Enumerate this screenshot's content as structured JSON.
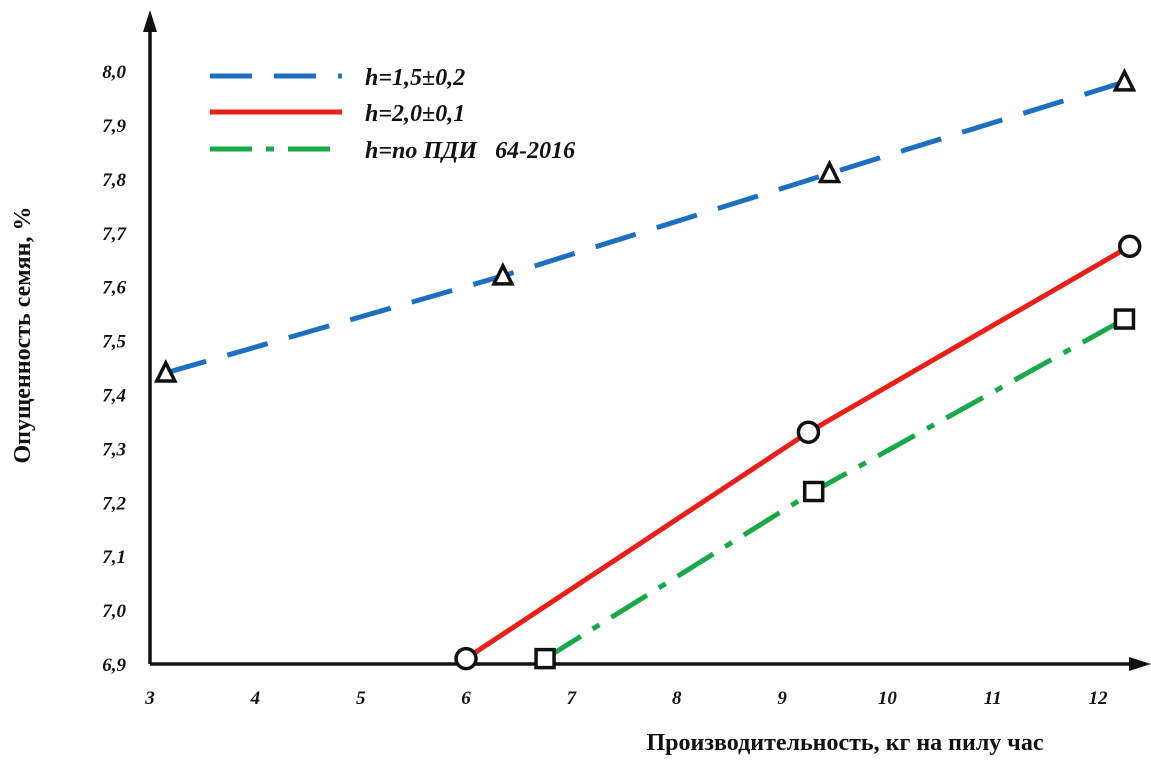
{
  "chart_data": {
    "type": "line",
    "xlabel": "Производительность, кг на пилу час",
    "ylabel": "Опущенность семян, %",
    "xlim": [
      3,
      12.35
    ],
    "ylim": [
      6.9,
      8.08
    ],
    "x_ticks": [
      {
        "value": 3,
        "label": "3"
      },
      {
        "value": 4,
        "label": "4"
      },
      {
        "value": 5,
        "label": "5"
      },
      {
        "value": 6,
        "label": "6"
      },
      {
        "value": 7,
        "label": "7"
      },
      {
        "value": 8,
        "label": "8"
      },
      {
        "value": 9,
        "label": "9"
      },
      {
        "value": 10,
        "label": "10"
      },
      {
        "value": 11,
        "label": "11"
      },
      {
        "value": 12,
        "label": "12"
      }
    ],
    "y_ticks": [
      {
        "value": 6.9,
        "label": "6,9"
      },
      {
        "value": 7.0,
        "label": "7,0"
      },
      {
        "value": 7.1,
        "label": "7,1"
      },
      {
        "value": 7.2,
        "label": "7,2"
      },
      {
        "value": 7.3,
        "label": "7,3"
      },
      {
        "value": 7.4,
        "label": "7,4"
      },
      {
        "value": 7.5,
        "label": "7,5"
      },
      {
        "value": 7.6,
        "label": "7,6"
      },
      {
        "value": 7.7,
        "label": "7,7"
      },
      {
        "value": 7.8,
        "label": "7,8"
      },
      {
        "value": 7.9,
        "label": "7,9"
      },
      {
        "value": 8.0,
        "label": "8,0"
      }
    ],
    "grid": false,
    "legend_position": "top-left",
    "series": [
      {
        "name": "h=1,5±0,2",
        "color": "#1f6fc0",
        "style": "dashed",
        "marker": "triangle",
        "x": [
          3.15,
          6.35,
          9.45,
          12.25
        ],
        "y": [
          7.44,
          7.62,
          7.81,
          7.98
        ]
      },
      {
        "name": "h=2,0±0,1",
        "color": "#e8201a",
        "style": "solid",
        "marker": "circle",
        "x": [
          6.0,
          9.25,
          12.3
        ],
        "y": [
          6.91,
          7.33,
          7.675
        ]
      },
      {
        "name": "h=по ПДИ   64-2016",
        "color": "#1aa84a",
        "style": "dashdot",
        "marker": "square",
        "x": [
          6.75,
          9.3,
          12.25
        ],
        "y": [
          6.91,
          7.22,
          7.54
        ]
      }
    ]
  }
}
